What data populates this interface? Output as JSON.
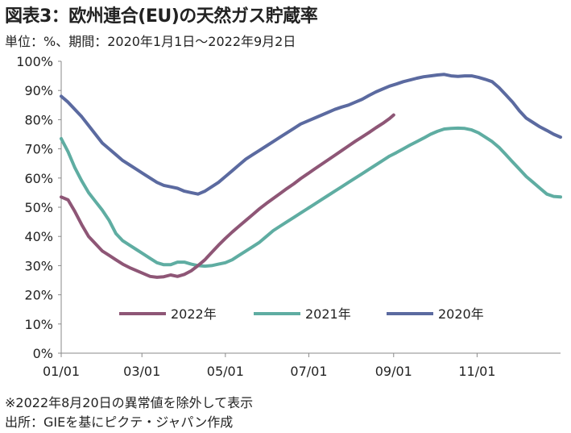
{
  "header": {
    "title": "図表3：欧州連合(EU)の天然ガス貯蔵率",
    "subtitle": "単位：%、期間：2020年1月1日～2022年9月2日"
  },
  "notes": {
    "note1": "※2022年8月20日の異常値を除外して表示",
    "source": "出所：GIEを基にピクテ・ジャパン作成"
  },
  "chart_data": {
    "type": "line",
    "y_tick_labels": [
      "0%",
      "10%",
      "20%",
      "30%",
      "40%",
      "50%",
      "60%",
      "70%",
      "80%",
      "90%",
      "100%"
    ],
    "x_tick_labels": [
      "01/01",
      "03/01",
      "05/01",
      "07/01",
      "09/01",
      "11/01"
    ],
    "x_tick_days": [
      0,
      59,
      120,
      181,
      243,
      304
    ],
    "x_range_days": [
      0,
      365
    ],
    "ylim": [
      0,
      100
    ],
    "grid": false,
    "legend_position": "bottom-center",
    "series": [
      {
        "name": "2022年",
        "color": "#8e5676",
        "x": [
          0,
          5,
          10,
          15,
          20,
          25,
          30,
          35,
          40,
          45,
          50,
          55,
          60,
          65,
          70,
          75,
          80,
          85,
          90,
          95,
          100,
          105,
          110,
          115,
          120,
          125,
          130,
          135,
          140,
          145,
          150,
          155,
          160,
          165,
          170,
          175,
          180,
          185,
          190,
          195,
          200,
          205,
          210,
          215,
          220,
          225,
          230,
          235,
          240,
          243
        ],
        "y": [
          53.5,
          52.5,
          48.5,
          44,
          40,
          37.5,
          35,
          33.5,
          32,
          30.5,
          29.3,
          28.3,
          27.3,
          26.3,
          26,
          26.2,
          26.8,
          26.3,
          27,
          28.2,
          30,
          32,
          34.5,
          37,
          39.3,
          41.5,
          43.5,
          45.5,
          47.5,
          49.5,
          51.3,
          53,
          54.7,
          56.4,
          58,
          59.8,
          61.4,
          63,
          64.6,
          66.2,
          67.8,
          69.4,
          71,
          72.6,
          74.1,
          75.6,
          77.2,
          78.7,
          80.4,
          81.6
        ]
      },
      {
        "name": "2021年",
        "color": "#5fada2",
        "x": [
          0,
          5,
          10,
          15,
          20,
          25,
          30,
          35,
          40,
          45,
          50,
          55,
          60,
          65,
          70,
          75,
          80,
          85,
          90,
          95,
          100,
          105,
          110,
          115,
          120,
          125,
          130,
          135,
          140,
          145,
          150,
          155,
          160,
          165,
          170,
          175,
          180,
          185,
          190,
          195,
          200,
          205,
          210,
          215,
          220,
          225,
          230,
          235,
          240,
          245,
          250,
          255,
          260,
          265,
          270,
          275,
          280,
          285,
          290,
          295,
          300,
          305,
          310,
          315,
          320,
          325,
          330,
          335,
          340,
          345,
          350,
          355,
          360,
          365
        ],
        "y": [
          73.5,
          69,
          63.5,
          59,
          55,
          52,
          49,
          45.5,
          41,
          38.5,
          37,
          35.5,
          34,
          32.5,
          31,
          30.3,
          30.3,
          31.2,
          31.2,
          30.5,
          30,
          29.8,
          30,
          30.5,
          31,
          32,
          33.5,
          35,
          36.5,
          38,
          40,
          42,
          43.5,
          45,
          46.5,
          48,
          49.5,
          51,
          52.5,
          54,
          55.5,
          57,
          58.5,
          60,
          61.5,
          63,
          64.5,
          66,
          67.5,
          68.7,
          70,
          71.3,
          72.5,
          73.7,
          75,
          76,
          76.8,
          77,
          77.1,
          77,
          76.5,
          75.5,
          74,
          72.5,
          70.5,
          68,
          65.5,
          63,
          60.5,
          58.5,
          56.5,
          54.5,
          53.7,
          53.5
        ]
      },
      {
        "name": "2020年",
        "color": "#5b6aa0",
        "x": [
          0,
          5,
          10,
          15,
          20,
          25,
          30,
          35,
          40,
          45,
          50,
          55,
          60,
          65,
          70,
          75,
          80,
          85,
          90,
          95,
          100,
          105,
          110,
          115,
          120,
          125,
          130,
          135,
          140,
          145,
          150,
          155,
          160,
          165,
          170,
          175,
          180,
          185,
          190,
          195,
          200,
          205,
          210,
          215,
          220,
          225,
          230,
          235,
          240,
          245,
          250,
          255,
          260,
          265,
          270,
          275,
          280,
          285,
          290,
          295,
          300,
          305,
          310,
          315,
          320,
          325,
          330,
          335,
          340,
          345,
          350,
          355,
          360,
          365
        ],
        "y": [
          88,
          86,
          83.5,
          81,
          78,
          75,
          72,
          70,
          68,
          66,
          64.5,
          63,
          61.5,
          60,
          58.5,
          57.5,
          57,
          56.5,
          55.5,
          55,
          54.5,
          55.5,
          57,
          58.5,
          60.5,
          62.5,
          64.5,
          66.5,
          68,
          69.5,
          71,
          72.5,
          74,
          75.5,
          77,
          78.5,
          79.5,
          80.5,
          81.5,
          82.5,
          83.5,
          84.3,
          85,
          86,
          87,
          88.3,
          89.5,
          90.5,
          91.5,
          92.2,
          93,
          93.6,
          94.2,
          94.7,
          95,
          95.3,
          95.5,
          95,
          94.8,
          95,
          95,
          94.5,
          93.8,
          93,
          91,
          88.5,
          86,
          83,
          80.5,
          79,
          77.5,
          76.3,
          75,
          74
        ]
      }
    ]
  }
}
